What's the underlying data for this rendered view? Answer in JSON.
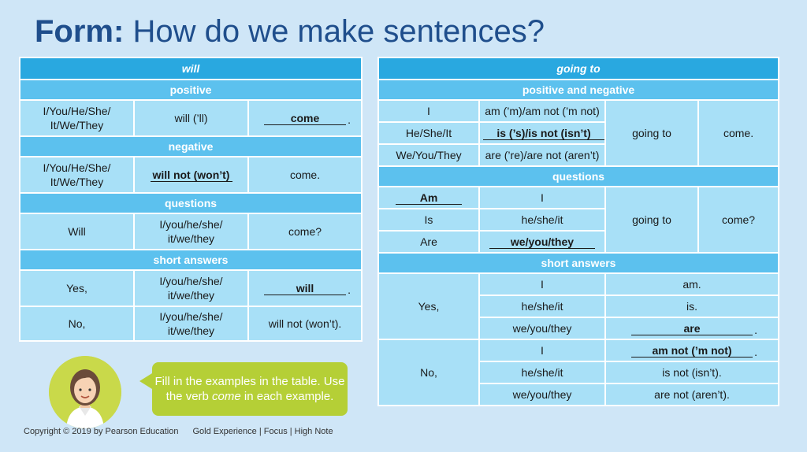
{
  "title": {
    "bold": "Form:",
    "rest": " How do we make sentences?"
  },
  "left": {
    "header": "will",
    "positive": {
      "label": "positive",
      "subject": "I/You/He/She/ It/We/They",
      "verb": "will (’ll)",
      "answer": "come"
    },
    "negative": {
      "label": "negative",
      "subject": "I/You/He/She/ It/We/They",
      "answer": "will not (won’t)",
      "verb": "come."
    },
    "questions": {
      "label": "questions",
      "aux": "Will",
      "subject": "I/you/he/she/ it/we/they",
      "verb": "come?"
    },
    "short": {
      "label": "short answers",
      "yes": {
        "word": "Yes,",
        "subject": "I/you/he/she/ it/we/they",
        "answer": "will"
      },
      "no": {
        "word": "No,",
        "subject": "I/you/he/she/ it/we/they",
        "verb": "will not (won’t)."
      }
    }
  },
  "right": {
    "header": "going to",
    "posneg": {
      "label": "positive and negative",
      "rows": [
        {
          "subject": "I",
          "be": "am (’m)/am not (’m not)",
          "filled": false
        },
        {
          "subject": "He/She/It",
          "be": "is (’s)/is not (isn’t)",
          "filled": true
        },
        {
          "subject": "We/You/They",
          "be": "are (’re)/are not (aren’t)",
          "filled": false
        }
      ],
      "going": "going to",
      "verb": "come."
    },
    "questions": {
      "label": "questions",
      "rows": [
        {
          "aux": "Am",
          "subject": "I",
          "aux_filled": true,
          "subject_filled": false
        },
        {
          "aux": "Is",
          "subject": "he/she/it",
          "aux_filled": false,
          "subject_filled": false
        },
        {
          "aux": "Are",
          "subject": "we/you/they",
          "aux_filled": false,
          "subject_filled": true
        }
      ],
      "going": "going to",
      "verb": "come?"
    },
    "short": {
      "label": "short answers",
      "yes": {
        "word": "Yes,",
        "rows": [
          {
            "subject": "I",
            "answer": "am.",
            "filled": false
          },
          {
            "subject": "he/she/it",
            "answer": "is.",
            "filled": false
          },
          {
            "subject": "we/you/they",
            "answer": "are",
            "filled": true
          }
        ]
      },
      "no": {
        "word": "No,",
        "rows": [
          {
            "subject": "I",
            "answer": "am not (’m not)",
            "filled": true
          },
          {
            "subject": "he/she/it",
            "answer": "is not (isn’t).",
            "filled": false
          },
          {
            "subject": "we/you/they",
            "answer": "are not (aren’t).",
            "filled": false
          }
        ]
      }
    }
  },
  "bubble": {
    "line1": "Fill in the examples in the table. Use the verb ",
    "italic": "come",
    "line2": " in each example."
  },
  "footer": {
    "copyright": "Copyright © 2019 by Pearson Education",
    "series": "Gold Experience | Focus | High Note"
  },
  "colors": {
    "title": "#1f4e8c",
    "header": "#29a8e0",
    "subheader": "#5cc1ee",
    "cell": "#a8e0f7",
    "bubble": "#b5cf36",
    "background": "#cfe6f7"
  }
}
